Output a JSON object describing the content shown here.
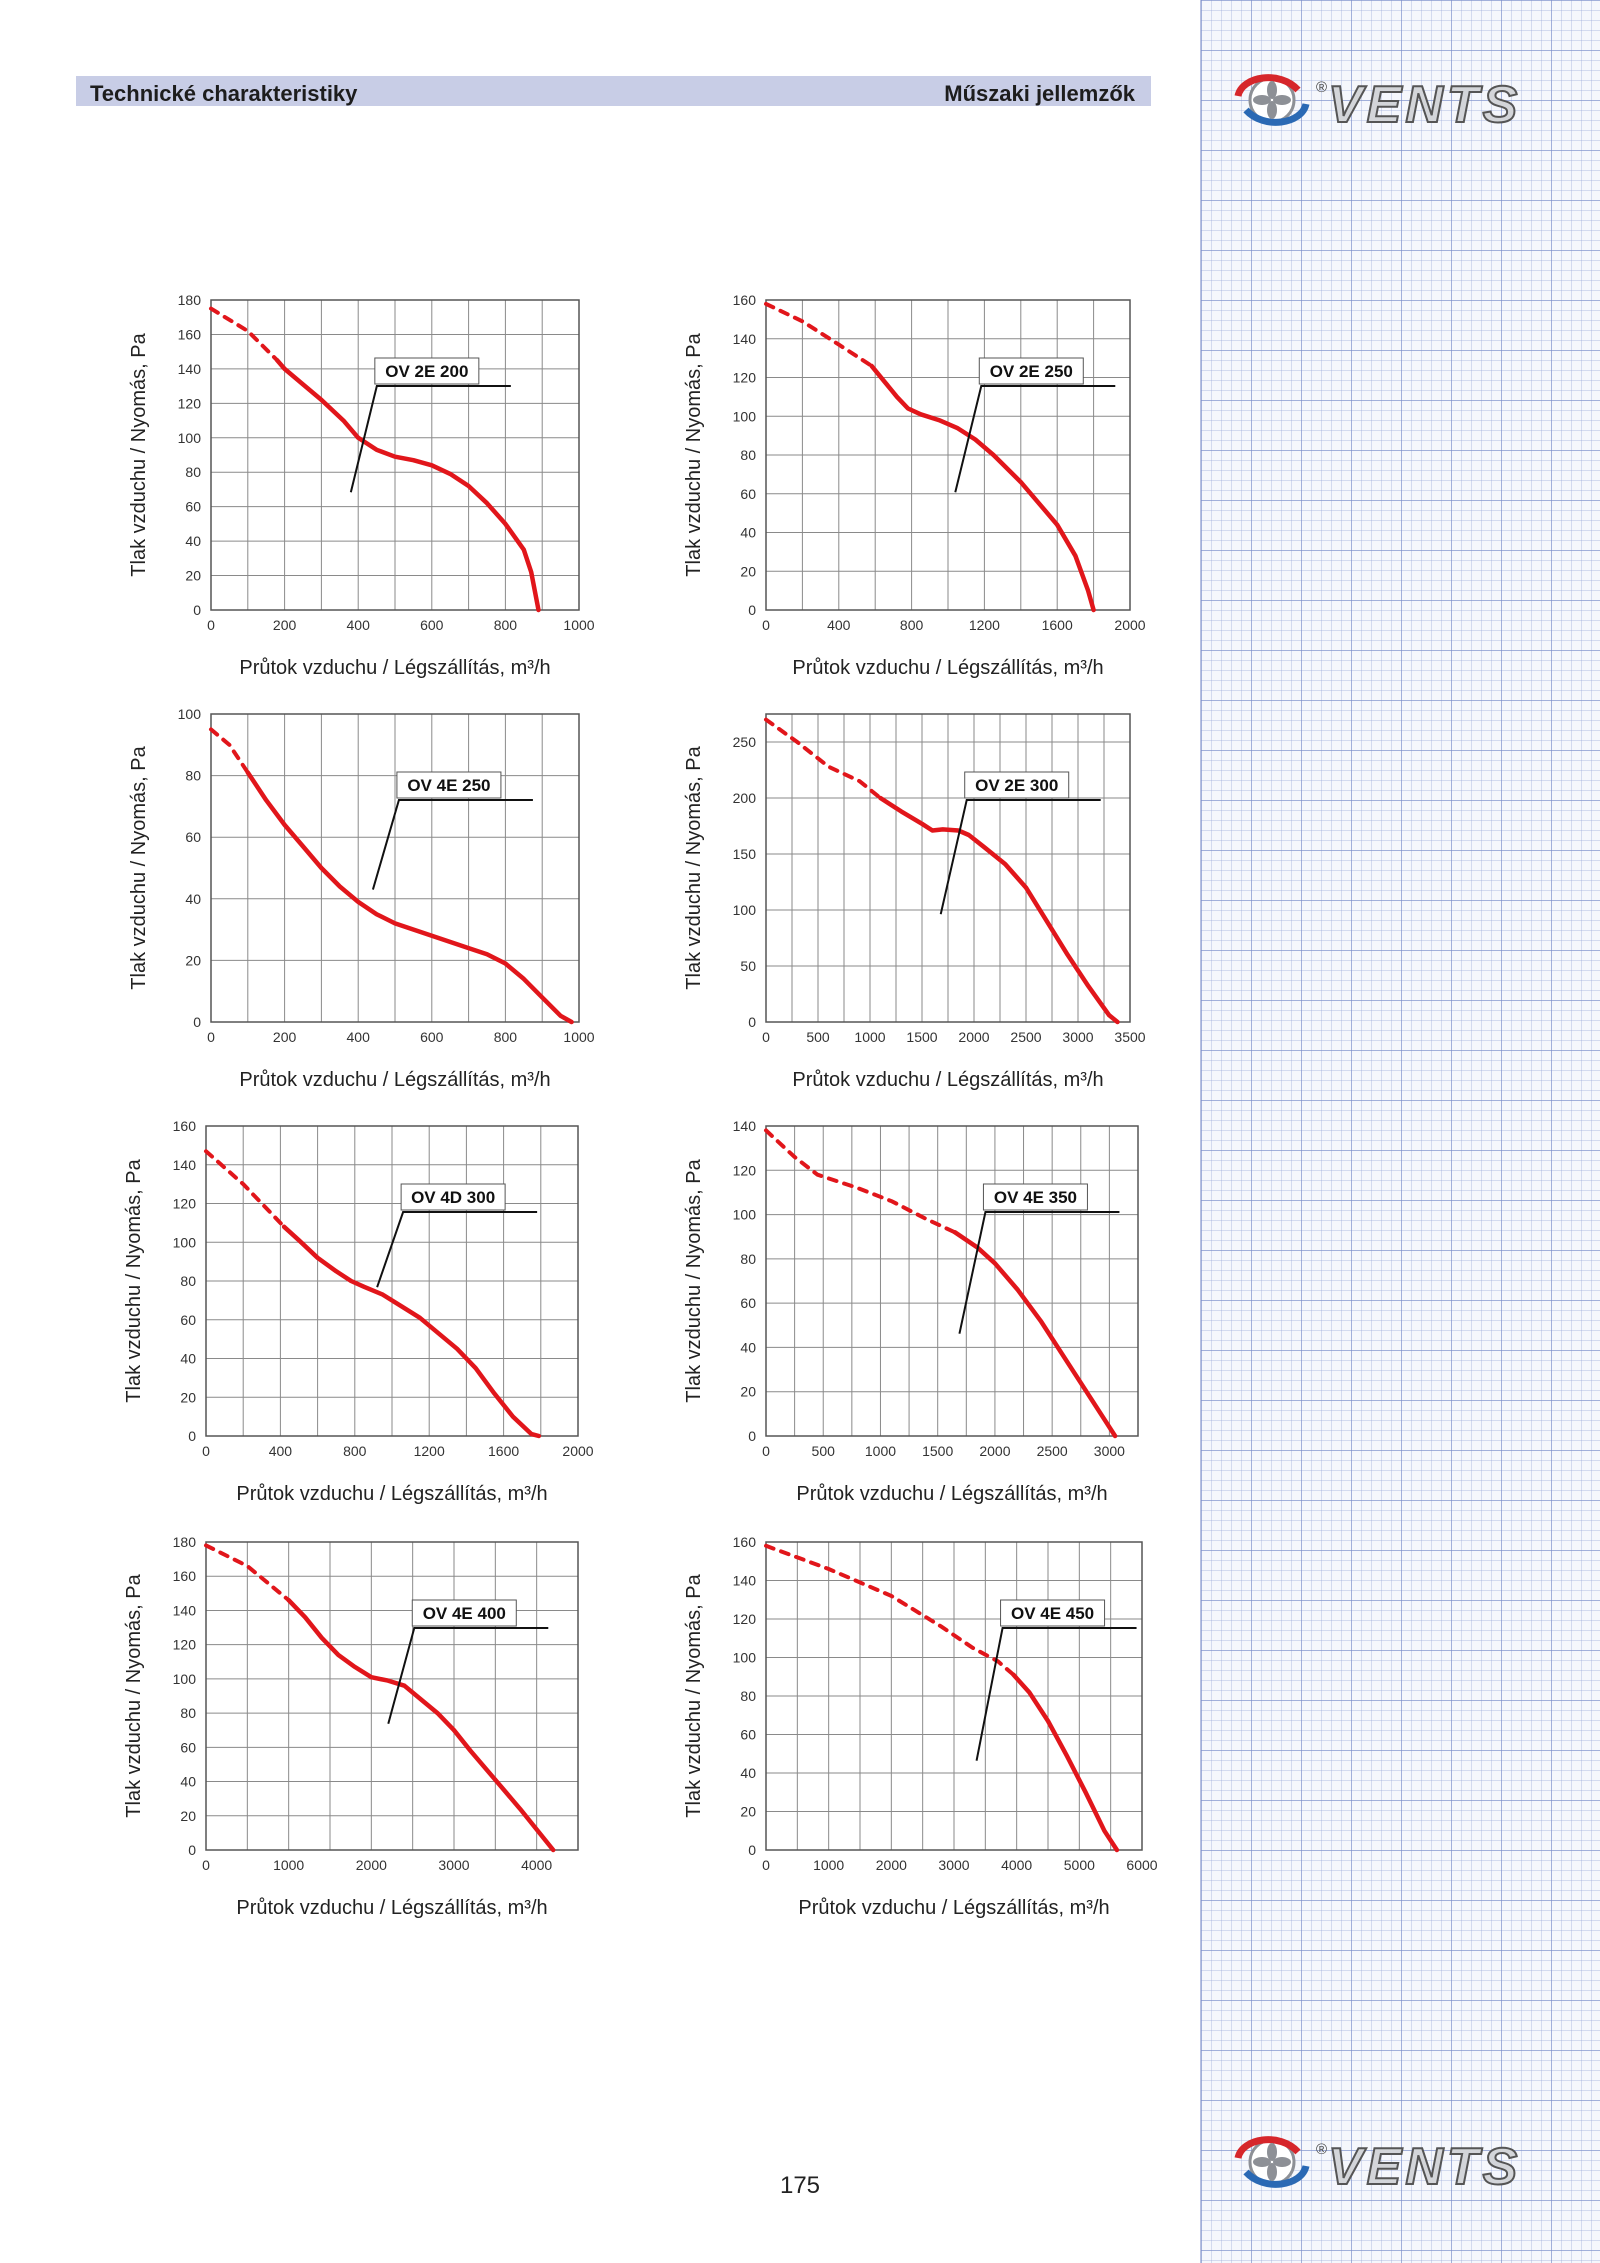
{
  "header": {
    "left_title": "Technické charakteristiky",
    "right_title": "Műszaki jellemzők"
  },
  "brand": {
    "name": "VENTS",
    "registered_mark": "®"
  },
  "page_number": "175",
  "colors": {
    "curve": "#e1161b",
    "header_bar": "#c8cde6",
    "grid_panel": "#aab6de",
    "logo_red": "#d6262b",
    "logo_blue": "#2a69b4",
    "logo_gray": "#8d9096"
  },
  "chart_data": [
    {
      "type": "line",
      "name": "OV 2E 200",
      "label": "OV 2E 200",
      "ylabel": "Tlak vzduchu / Nyomás, Pa",
      "xlabel": "Průtok vzduchu / Légszállítás, m³/h",
      "xlim": [
        0,
        1000
      ],
      "ylim": [
        0,
        180
      ],
      "xticks": [
        0,
        200,
        400,
        600,
        800,
        1000
      ],
      "yticks": [
        0,
        20,
        40,
        60,
        80,
        100,
        120,
        140,
        160,
        180
      ],
      "grid": true,
      "dashed_points": [
        [
          0,
          175
        ],
        [
          100,
          162
        ],
        [
          180,
          145
        ]
      ],
      "solid_points": [
        [
          180,
          145
        ],
        [
          200,
          140
        ],
        [
          300,
          122
        ],
        [
          360,
          110
        ],
        [
          400,
          100
        ],
        [
          450,
          93
        ],
        [
          500,
          89
        ],
        [
          550,
          87
        ],
        [
          600,
          84
        ],
        [
          650,
          79
        ],
        [
          700,
          72
        ],
        [
          750,
          62
        ],
        [
          800,
          50
        ],
        [
          850,
          35
        ],
        [
          870,
          22
        ],
        [
          890,
          0
        ]
      ]
    },
    {
      "type": "line",
      "name": "OV 2E 250",
      "label": "OV 2E 250",
      "ylabel": "Tlak vzduchu / Nyomás, Pa",
      "xlabel": "Průtok vzduchu / Légszállítás, m³/h",
      "xlim": [
        0,
        2000
      ],
      "ylim": [
        0,
        160
      ],
      "xticks": [
        0,
        400,
        800,
        1200,
        1600,
        2000
      ],
      "yticks": [
        0,
        20,
        40,
        60,
        80,
        100,
        120,
        140,
        160
      ],
      "grid": true,
      "dashed_points": [
        [
          0,
          158
        ],
        [
          200,
          149
        ],
        [
          400,
          137
        ],
        [
          580,
          126
        ]
      ],
      "solid_points": [
        [
          580,
          126
        ],
        [
          650,
          118
        ],
        [
          720,
          110
        ],
        [
          780,
          104
        ],
        [
          850,
          101
        ],
        [
          950,
          98
        ],
        [
          1050,
          94
        ],
        [
          1150,
          88
        ],
        [
          1250,
          80
        ],
        [
          1400,
          66
        ],
        [
          1500,
          55
        ],
        [
          1600,
          44
        ],
        [
          1700,
          28
        ],
        [
          1770,
          10
        ],
        [
          1800,
          0
        ]
      ]
    },
    {
      "type": "line",
      "name": "OV 4E 250",
      "label": "OV 4E 250",
      "ylabel": "Tlak vzduchu / Nyomás, Pa",
      "xlabel": "Průtok vzduchu / Légszállítás, m³/h",
      "xlim": [
        0,
        1000
      ],
      "ylim": [
        0,
        100
      ],
      "xticks": [
        0,
        200,
        400,
        600,
        800,
        1000
      ],
      "yticks": [
        0,
        20,
        40,
        60,
        80,
        100
      ],
      "grid": true,
      "dashed_points": [
        [
          0,
          95
        ],
        [
          50,
          90
        ],
        [
          100,
          81
        ]
      ],
      "solid_points": [
        [
          100,
          81
        ],
        [
          150,
          72
        ],
        [
          200,
          64
        ],
        [
          250,
          57
        ],
        [
          300,
          50
        ],
        [
          350,
          44
        ],
        [
          400,
          39
        ],
        [
          450,
          35
        ],
        [
          500,
          32
        ],
        [
          600,
          28
        ],
        [
          700,
          24
        ],
        [
          750,
          22
        ],
        [
          800,
          19
        ],
        [
          850,
          14
        ],
        [
          900,
          8
        ],
        [
          950,
          2
        ],
        [
          980,
          0
        ]
      ]
    },
    {
      "type": "line",
      "name": "OV 2E 300",
      "label": "OV 2E 300",
      "ylabel": "Tlak vzduchu / Nyomás, Pa",
      "xlabel": "Průtok vzduchu / Légszállítás, m³/h",
      "xlim": [
        0,
        3500
      ],
      "ylim": [
        0,
        275
      ],
      "xticks": [
        0,
        500,
        1000,
        1500,
        2000,
        2500,
        3000,
        3500
      ],
      "yticks": [
        0,
        50,
        100,
        150,
        200,
        250
      ],
      "grid": true,
      "dashed_points": [
        [
          0,
          270
        ],
        [
          300,
          250
        ],
        [
          600,
          228
        ],
        [
          900,
          215
        ],
        [
          1100,
          200
        ]
      ],
      "solid_points": [
        [
          1100,
          200
        ],
        [
          1300,
          188
        ],
        [
          1500,
          177
        ],
        [
          1600,
          171
        ],
        [
          1700,
          172
        ],
        [
          1850,
          171
        ],
        [
          1950,
          167
        ],
        [
          2100,
          156
        ],
        [
          2300,
          141
        ],
        [
          2500,
          120
        ],
        [
          2700,
          90
        ],
        [
          2900,
          60
        ],
        [
          3100,
          32
        ],
        [
          3300,
          6
        ],
        [
          3380,
          0
        ]
      ]
    },
    {
      "type": "line",
      "name": "OV 4D 300",
      "label": "OV 4D 300",
      "ylabel": "Tlak vzduchu / Nyomás, Pa",
      "xlabel": "Průtok vzduchu / Légszállítás, m³/h",
      "xlim": [
        0,
        2000
      ],
      "ylim": [
        0,
        160
      ],
      "xticks": [
        0,
        400,
        800,
        1200,
        1600,
        2000
      ],
      "yticks": [
        0,
        20,
        40,
        60,
        80,
        100,
        120,
        140,
        160
      ],
      "grid": true,
      "dashed_points": [
        [
          0,
          147
        ],
        [
          200,
          130
        ],
        [
          420,
          108
        ]
      ],
      "solid_points": [
        [
          420,
          108
        ],
        [
          500,
          101
        ],
        [
          600,
          92
        ],
        [
          700,
          85
        ],
        [
          780,
          80
        ],
        [
          850,
          77
        ],
        [
          950,
          73
        ],
        [
          1050,
          67
        ],
        [
          1150,
          61
        ],
        [
          1250,
          53
        ],
        [
          1350,
          45
        ],
        [
          1450,
          35
        ],
        [
          1550,
          22
        ],
        [
          1650,
          10
        ],
        [
          1750,
          1
        ],
        [
          1790,
          0
        ]
      ]
    },
    {
      "type": "line",
      "name": "OV 4E 350",
      "label": "OV 4E 350",
      "ylabel": "Tlak vzduchu / Nyomás, Pa",
      "xlabel": "Průtok vzduchu / Légszállítás, m³/h",
      "xlim": [
        0,
        3250
      ],
      "ylim": [
        0,
        140
      ],
      "xticks": [
        0,
        500,
        1000,
        1500,
        2000,
        2500,
        3000
      ],
      "yticks": [
        0,
        20,
        40,
        60,
        80,
        100,
        120,
        140
      ],
      "grid": true,
      "dashed_points": [
        [
          0,
          138
        ],
        [
          250,
          126
        ],
        [
          450,
          118
        ],
        [
          800,
          112
        ],
        [
          1100,
          106
        ],
        [
          1400,
          98
        ],
        [
          1650,
          92
        ]
      ],
      "solid_points": [
        [
          1650,
          92
        ],
        [
          1850,
          85
        ],
        [
          2000,
          78
        ],
        [
          2200,
          66
        ],
        [
          2400,
          52
        ],
        [
          2600,
          36
        ],
        [
          2800,
          20
        ],
        [
          2950,
          8
        ],
        [
          3050,
          0
        ]
      ]
    },
    {
      "type": "line",
      "name": "OV 4E 400",
      "label": "OV 4E 400",
      "ylabel": "Tlak vzduchu / Nyomás, Pa",
      "xlabel": "Průtok vzduchu / Légszállítás, m³/h",
      "xlim": [
        0,
        4500
      ],
      "ylim": [
        0,
        180
      ],
      "xticks": [
        0,
        1000,
        2000,
        3000,
        4000
      ],
      "yticks": [
        0,
        20,
        40,
        60,
        80,
        100,
        120,
        140,
        160,
        180
      ],
      "grid": true,
      "dashed_points": [
        [
          0,
          178
        ],
        [
          500,
          166
        ],
        [
          1000,
          146
        ]
      ],
      "solid_points": [
        [
          1000,
          146
        ],
        [
          1200,
          136
        ],
        [
          1400,
          124
        ],
        [
          1600,
          114
        ],
        [
          1800,
          107
        ],
        [
          2000,
          101
        ],
        [
          2200,
          99
        ],
        [
          2400,
          96
        ],
        [
          2600,
          88
        ],
        [
          2800,
          80
        ],
        [
          3000,
          70
        ],
        [
          3200,
          58
        ],
        [
          3500,
          41
        ],
        [
          3800,
          24
        ],
        [
          4000,
          12
        ],
        [
          4200,
          0
        ]
      ]
    },
    {
      "type": "line",
      "name": "OV 4E 450",
      "label": "OV 4E 450",
      "ylabel": "Tlak vzduchu / Nyomás, Pa",
      "xlabel": "Průtok vzduchu / Légszállítás, m³/h",
      "xlim": [
        0,
        6000
      ],
      "ylim": [
        0,
        160
      ],
      "xticks": [
        0,
        1000,
        2000,
        3000,
        4000,
        5000,
        6000
      ],
      "yticks": [
        0,
        20,
        40,
        60,
        80,
        100,
        120,
        140,
        160
      ],
      "grid": true,
      "dashed_points": [
        [
          0,
          158
        ],
        [
          1000,
          146
        ],
        [
          2000,
          132
        ],
        [
          2800,
          116
        ],
        [
          3300,
          105
        ],
        [
          3700,
          98
        ],
        [
          3950,
          91
        ]
      ],
      "solid_points": [
        [
          3950,
          91
        ],
        [
          4200,
          82
        ],
        [
          4500,
          67
        ],
        [
          4800,
          49
        ],
        [
          5100,
          30
        ],
        [
          5400,
          10
        ],
        [
          5600,
          0
        ]
      ]
    }
  ]
}
